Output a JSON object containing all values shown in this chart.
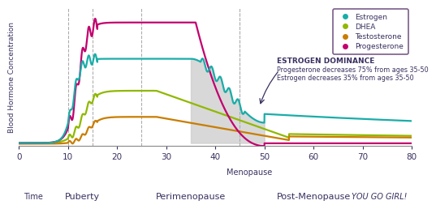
{
  "ylabel": "Blood Hormone Concentration",
  "xlabel_time": "Time",
  "xlabel_puberty": "Puberty",
  "xlabel_perimenopause": "Perimenopause",
  "xlabel_menopause": "Menopause",
  "xlabel_postmenopause": "Post-Menopause",
  "xlabel_yougogirl": "YOU GO GIRL!",
  "xmin": 0,
  "xmax": 80,
  "dashed_lines": [
    10,
    15,
    25,
    45
  ],
  "estrogen_color": "#1aada8",
  "dhea_color": "#90b800",
  "testosterone_color": "#c97d00",
  "progesterone_color": "#c2006e",
  "dominance_fill_color": "#cccccc",
  "legend_border_color": "#7a5c8a",
  "text_color_dark": "#3a3060",
  "text_color_mid": "#555555",
  "bg_color": "#ffffff",
  "annotation_text_bold": "ESTROGEN DOMINANCE",
  "annotation_line1": "Progesterone decreases 75% from ages 35-50",
  "annotation_line2": "Estrogen decreases 35% from ages 35-50"
}
